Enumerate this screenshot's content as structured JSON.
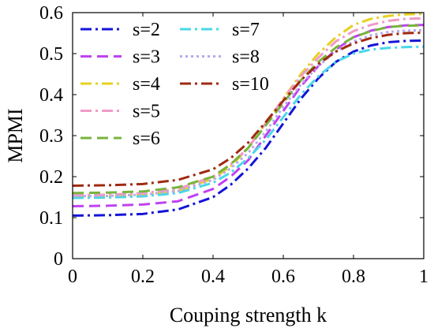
{
  "chart_data": {
    "type": "line",
    "xlabel": "Couping strength k",
    "ylabel": "MPMI",
    "xlim": [
      0,
      1
    ],
    "ylim": [
      0,
      0.6
    ],
    "xticks": [
      "0",
      "0.2",
      "0.4",
      "0.6",
      "0.8",
      "1"
    ],
    "yticks": [
      "0",
      "0.1",
      "0.2",
      "0.3",
      "0.4",
      "0.5",
      "0.6"
    ],
    "grid": false,
    "legend_position": "top-left",
    "x": [
      0,
      0.1,
      0.2,
      0.3,
      0.4,
      0.45,
      0.5,
      0.55,
      0.6,
      0.65,
      0.7,
      0.75,
      0.8,
      0.85,
      0.9,
      0.95,
      1.0
    ],
    "series": [
      {
        "name": "s=2",
        "color": "#1414d8",
        "dash": "dashdot",
        "values": [
          0.105,
          0.106,
          0.109,
          0.12,
          0.15,
          0.18,
          0.22,
          0.27,
          0.33,
          0.39,
          0.44,
          0.48,
          0.505,
          0.52,
          0.528,
          0.531,
          0.532
        ]
      },
      {
        "name": "s=3",
        "color": "#c042f0",
        "dash": "dash",
        "values": [
          0.128,
          0.129,
          0.132,
          0.14,
          0.17,
          0.2,
          0.24,
          0.3,
          0.36,
          0.42,
          0.47,
          0.51,
          0.54,
          0.556,
          0.565,
          0.569,
          0.57
        ]
      },
      {
        "name": "s=4",
        "color": "#e6d020",
        "dash": "dashdot",
        "values": [
          0.15,
          0.151,
          0.155,
          0.165,
          0.195,
          0.225,
          0.27,
          0.33,
          0.39,
          0.45,
          0.5,
          0.54,
          0.57,
          0.585,
          0.592,
          0.596,
          0.597
        ]
      },
      {
        "name": "s=5",
        "color": "#f09ac8",
        "dash": "dashdot",
        "values": [
          0.155,
          0.156,
          0.16,
          0.17,
          0.2,
          0.23,
          0.27,
          0.33,
          0.39,
          0.445,
          0.49,
          0.53,
          0.555,
          0.57,
          0.58,
          0.585,
          0.586
        ]
      },
      {
        "name": "s=6",
        "color": "#78b43c",
        "dash": "dash",
        "values": [
          0.16,
          0.161,
          0.164,
          0.174,
          0.2,
          0.23,
          0.27,
          0.325,
          0.38,
          0.435,
          0.48,
          0.515,
          0.54,
          0.555,
          0.565,
          0.568,
          0.569
        ]
      },
      {
        "name": "s=7",
        "color": "#48d8e8",
        "dash": "dashdot",
        "values": [
          0.148,
          0.149,
          0.152,
          0.16,
          0.185,
          0.21,
          0.245,
          0.29,
          0.345,
          0.4,
          0.445,
          0.48,
          0.5,
          0.51,
          0.514,
          0.516,
          0.517
        ]
      },
      {
        "name": "s=8",
        "color": "#b8a8f0",
        "dash": "dot",
        "values": [
          0.152,
          0.153,
          0.156,
          0.165,
          0.192,
          0.22,
          0.258,
          0.31,
          0.37,
          0.425,
          0.47,
          0.505,
          0.53,
          0.545,
          0.553,
          0.556,
          0.557
        ]
      },
      {
        "name": "s=10",
        "color": "#a02a10",
        "dash": "dashdot",
        "values": [
          0.178,
          0.179,
          0.182,
          0.192,
          0.218,
          0.245,
          0.283,
          0.333,
          0.385,
          0.435,
          0.475,
          0.505,
          0.525,
          0.538,
          0.546,
          0.55,
          0.551
        ]
      }
    ]
  }
}
